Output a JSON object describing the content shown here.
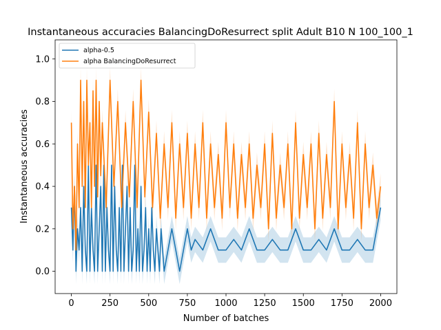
{
  "chart_data": {
    "type": "line",
    "title": "Instantaneous accuracies BalancingDoResurrect split Adult B10 N 100_100_1",
    "xlabel": "Number of batches",
    "ylabel": "Instantaneous accuracies",
    "xlim": [
      -105,
      2105
    ],
    "ylim": [
      -0.105,
      1.09
    ],
    "xticks": [
      0,
      250,
      500,
      750,
      1000,
      1250,
      1500,
      1750,
      2000
    ],
    "xtick_labels": [
      "0",
      "250",
      "500",
      "750",
      "1000",
      "1250",
      "1500",
      "1750",
      "2000"
    ],
    "yticks": [
      0.0,
      0.2,
      0.4,
      0.6,
      0.8,
      1.0
    ],
    "ytick_labels": [
      "0.0",
      "0.2",
      "0.4",
      "0.6",
      "0.8",
      "1.0"
    ],
    "grid": false,
    "legend_position": "top-left",
    "series": [
      {
        "name": "alpha-0.5",
        "color": "#1f77b4",
        "band_color": "#1f77b4",
        "x": [
          0,
          10,
          20,
          30,
          40,
          50,
          60,
          70,
          80,
          90,
          100,
          110,
          120,
          130,
          140,
          150,
          160,
          170,
          180,
          190,
          200,
          210,
          220,
          230,
          240,
          250,
          260,
          270,
          280,
          290,
          300,
          310,
          320,
          330,
          340,
          350,
          360,
          370,
          380,
          390,
          400,
          410,
          420,
          430,
          440,
          450,
          460,
          470,
          480,
          490,
          500,
          510,
          520,
          530,
          540,
          550,
          560,
          570,
          580,
          590,
          600,
          625,
          650,
          675,
          700,
          725,
          750,
          775,
          800,
          850,
          900,
          950,
          1000,
          1050,
          1100,
          1150,
          1200,
          1250,
          1300,
          1350,
          1400,
          1450,
          1500,
          1550,
          1600,
          1650,
          1700,
          1750,
          1800,
          1850,
          1900,
          1950,
          2000
        ],
        "y": [
          0.3,
          0.1,
          0.4,
          0.0,
          0.2,
          0.1,
          0.3,
          0.0,
          0.4,
          0.1,
          0.0,
          0.5,
          0.0,
          0.3,
          0.1,
          0.0,
          0.5,
          0.0,
          0.2,
          0.4,
          0.0,
          0.5,
          0.0,
          0.3,
          0.1,
          0.0,
          0.5,
          0.0,
          0.4,
          0.1,
          0.0,
          0.3,
          0.0,
          0.5,
          0.0,
          0.2,
          0.4,
          0.0,
          0.3,
          0.0,
          0.1,
          0.5,
          0.0,
          0.2,
          0.0,
          0.4,
          0.0,
          0.1,
          0.3,
          0.0,
          0.2,
          0.0,
          0.3,
          0.1,
          0.0,
          0.2,
          0.1,
          0.0,
          0.2,
          0.1,
          0.0,
          0.1,
          0.2,
          0.1,
          0.0,
          0.1,
          0.2,
          0.1,
          0.15,
          0.1,
          0.2,
          0.1,
          0.1,
          0.15,
          0.1,
          0.2,
          0.1,
          0.1,
          0.15,
          0.1,
          0.1,
          0.2,
          0.1,
          0.1,
          0.15,
          0.1,
          0.2,
          0.1,
          0.1,
          0.15,
          0.1,
          0.1,
          0.3
        ]
      },
      {
        "name": "alpha BalancingDoResurrect",
        "color": "#ff7f0e",
        "band_color": "#ff7f0e",
        "x": [
          0,
          10,
          20,
          30,
          40,
          50,
          60,
          70,
          80,
          90,
          100,
          110,
          120,
          130,
          140,
          150,
          160,
          170,
          180,
          190,
          200,
          225,
          250,
          275,
          300,
          325,
          350,
          375,
          400,
          425,
          450,
          475,
          500,
          525,
          550,
          575,
          600,
          625,
          650,
          675,
          700,
          725,
          750,
          775,
          800,
          825,
          850,
          875,
          900,
          925,
          950,
          975,
          1000,
          1025,
          1050,
          1075,
          1100,
          1125,
          1150,
          1175,
          1200,
          1225,
          1250,
          1275,
          1300,
          1325,
          1350,
          1375,
          1400,
          1425,
          1450,
          1475,
          1500,
          1525,
          1550,
          1575,
          1600,
          1625,
          1650,
          1675,
          1700,
          1725,
          1750,
          1775,
          1800,
          1825,
          1850,
          1875,
          1900,
          1925,
          1950,
          1975,
          2000
        ],
        "y": [
          0.7,
          0.2,
          0.4,
          0.1,
          0.6,
          0.3,
          0.9,
          0.4,
          0.8,
          0.3,
          0.9,
          0.5,
          0.7,
          0.3,
          0.85,
          0.4,
          0.9,
          0.35,
          0.8,
          0.45,
          0.7,
          0.3,
          0.9,
          0.4,
          0.8,
          0.3,
          0.7,
          0.35,
          0.8,
          0.3,
          0.9,
          0.35,
          0.75,
          0.3,
          0.65,
          0.25,
          0.6,
          0.3,
          0.7,
          0.25,
          0.6,
          0.3,
          0.65,
          0.25,
          0.6,
          0.3,
          0.7,
          0.25,
          0.6,
          0.3,
          0.55,
          0.25,
          0.7,
          0.3,
          0.6,
          0.25,
          0.55,
          0.3,
          0.6,
          0.25,
          0.5,
          0.3,
          0.6,
          0.2,
          0.65,
          0.25,
          0.5,
          0.3,
          0.6,
          0.2,
          0.7,
          0.25,
          0.55,
          0.3,
          0.6,
          0.2,
          0.65,
          0.25,
          0.55,
          0.3,
          0.8,
          0.2,
          0.6,
          0.3,
          0.55,
          0.25,
          0.7,
          0.2,
          0.6,
          0.3,
          0.5,
          0.25,
          0.4
        ]
      }
    ]
  }
}
